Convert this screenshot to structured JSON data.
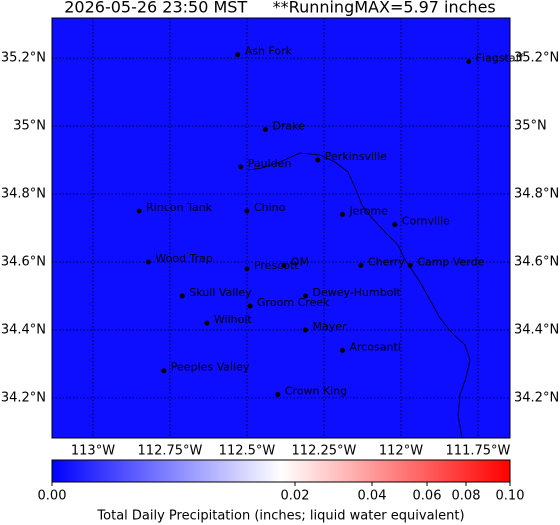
{
  "header": {
    "title": "2026-05-26 23:50 MST     **RunningMAX=5.97 inches"
  },
  "map": {
    "xlim": [
      -113.133,
      -111.646
    ],
    "ylim": [
      34.082,
      35.318
    ],
    "xticks": [
      {
        "value": -113,
        "label": "113°W"
      },
      {
        "value": -112.75,
        "label": "112.75°W"
      },
      {
        "value": -112.5,
        "label": "112.5°W"
      },
      {
        "value": -112.25,
        "label": "112.25°W"
      },
      {
        "value": -112,
        "label": "112°W"
      },
      {
        "value": -111.75,
        "label": "111.75°W"
      }
    ],
    "yticks": [
      {
        "value": 35.2,
        "label": "35.2°N"
      },
      {
        "value": 35,
        "label": "35°N"
      },
      {
        "value": 34.8,
        "label": "34.8°N"
      },
      {
        "value": 34.6,
        "label": "34.6°N"
      },
      {
        "value": 34.4,
        "label": "34.4°N"
      },
      {
        "value": 34.2,
        "label": "34.2°N"
      }
    ],
    "places": [
      {
        "name": "Ash Fork",
        "lon": -112.53,
        "lat": 35.21
      },
      {
        "name": "Flagstaff",
        "lon": -111.78,
        "lat": 35.19
      },
      {
        "name": "Drake",
        "lon": -112.44,
        "lat": 34.99
      },
      {
        "name": "Paulden",
        "lon": -112.52,
        "lat": 34.88
      },
      {
        "name": "Perkinsville",
        "lon": -112.27,
        "lat": 34.9
      },
      {
        "name": "Rincon Tank",
        "lon": -112.85,
        "lat": 34.75
      },
      {
        "name": "Chino",
        "lon": -112.5,
        "lat": 34.75
      },
      {
        "name": "Jerome",
        "lon": -112.19,
        "lat": 34.74
      },
      {
        "name": "Cornville",
        "lon": -112.02,
        "lat": 34.71
      },
      {
        "name": "Wood Trap",
        "lon": -112.82,
        "lat": 34.6
      },
      {
        "name": "OM",
        "lon": -112.38,
        "lat": 34.59
      },
      {
        "name": "Prescott",
        "lon": -112.5,
        "lat": 34.58
      },
      {
        "name": "Cherry",
        "lon": -112.13,
        "lat": 34.59
      },
      {
        "name": "Camp Verde",
        "lon": -111.97,
        "lat": 34.59
      },
      {
        "name": "Skull Valley",
        "lon": -112.71,
        "lat": 34.5
      },
      {
        "name": "Dewey-Humbolt",
        "lon": -112.31,
        "lat": 34.5
      },
      {
        "name": "Groom Creek",
        "lon": -112.49,
        "lat": 34.47
      },
      {
        "name": "Wilhoit",
        "lon": -112.63,
        "lat": 34.42
      },
      {
        "name": "Mayer",
        "lon": -112.31,
        "lat": 34.4
      },
      {
        "name": "Arcosanti",
        "lon": -112.19,
        "lat": 34.34
      },
      {
        "name": "Peeples Valley",
        "lon": -112.77,
        "lat": 34.28
      },
      {
        "name": "Crown King",
        "lon": -112.4,
        "lat": 34.21
      }
    ]
  },
  "colorbar": {
    "label": "Total Daily Precipitation (inches; liquid water equivalent)",
    "ticks": [
      {
        "value": 0,
        "label": "0.00"
      },
      {
        "value": 0.02,
        "label": "0.02"
      },
      {
        "value": 0.04,
        "label": "0.04"
      },
      {
        "value": 0.06,
        "label": "0.06"
      },
      {
        "value": 0.08,
        "label": "0.08"
      },
      {
        "value": 0.1,
        "label": "0.10"
      }
    ]
  }
}
